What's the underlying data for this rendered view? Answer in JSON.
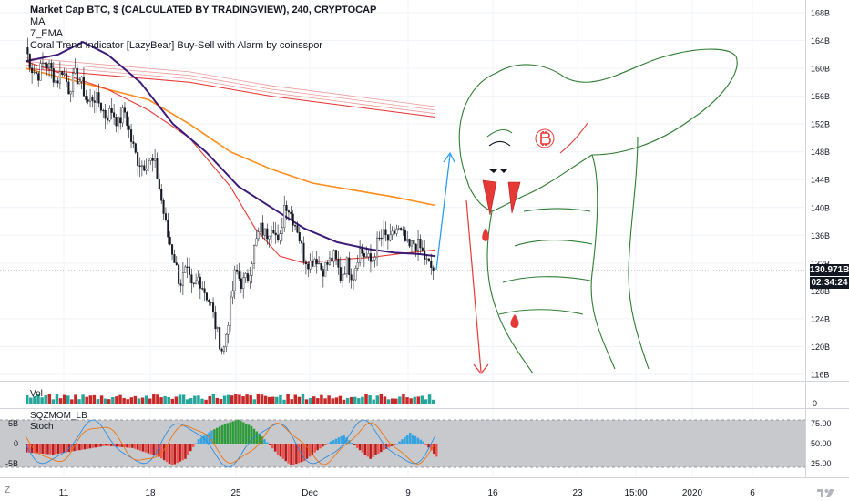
{
  "header": {
    "title": "Market Cap BTC, $ (CALCULATED BY TRADINGVIEW), 240, CRYPTOCAP",
    "indicators": [
      "MA",
      "7_EMA",
      "Coral Trend Indicator [LazyBear] Buy-Sell with Alarm by coinsspor"
    ]
  },
  "price_labels": {
    "last_price": "130.971B",
    "countdown": "02:34:24"
  },
  "panes": {
    "volume_label": "Vol",
    "momentum_label": "SQZMOM_LB",
    "stoch_label": "Stoch"
  },
  "corner_labels": {
    "z": "Z"
  },
  "colors": {
    "up": "#26a69a",
    "down": "#ef5350",
    "ma_purple": "#3c1a78",
    "ma_orange": "#ff8c1a",
    "ma_red": "#e53935",
    "projection_blue": "#2196f3",
    "projection_red": "#e53935",
    "doodle_green": "#2e7d32",
    "stoch_band": "#c8c9cc",
    "mom_green": "#2e9b3a",
    "mom_lime": "#34a3e0"
  },
  "chart_data": {
    "type": "candlestick",
    "title": "Market Cap BTC, $ (CALCULATED BY TRADINGVIEW), 240, CRYPTOCAP",
    "price_axis": {
      "ticks": [
        "168B",
        "164B",
        "160B",
        "156B",
        "152B",
        "148B",
        "144B",
        "140B",
        "136B",
        "132B",
        "128B",
        "124B",
        "120B",
        "116B"
      ],
      "range": [
        114.5,
        169.5
      ]
    },
    "time_axis": {
      "ticks": [
        "11",
        "18",
        "25",
        "Dec",
        "9",
        "16",
        "23",
        "15:00",
        "2020",
        "6"
      ]
    },
    "volume_axis": {
      "ticks": [
        "0"
      ]
    },
    "momentum_axis": {
      "ticks": [
        "5B",
        "0",
        "-5B"
      ]
    },
    "stoch_axis": {
      "ticks": [
        "75.00",
        "50.00",
        "25.00"
      ]
    },
    "price_path": [
      [
        0,
        163
      ],
      [
        1,
        160
      ],
      [
        2,
        159
      ],
      [
        3,
        161
      ],
      [
        4,
        160
      ],
      [
        5,
        158
      ],
      [
        6,
        160
      ],
      [
        7,
        157
      ],
      [
        8,
        159
      ],
      [
        9,
        158
      ],
      [
        10,
        155
      ],
      [
        11,
        156
      ],
      [
        12,
        155
      ],
      [
        13,
        153
      ],
      [
        14,
        154
      ],
      [
        15,
        152
      ],
      [
        16,
        154
      ],
      [
        17,
        150
      ],
      [
        18,
        147
      ],
      [
        19,
        146
      ],
      [
        20,
        147
      ],
      [
        21,
        146
      ],
      [
        22,
        141
      ],
      [
        23,
        136
      ],
      [
        24,
        133
      ],
      [
        25,
        129
      ],
      [
        26,
        131
      ],
      [
        27,
        128
      ],
      [
        28,
        130
      ],
      [
        29,
        128
      ],
      [
        30,
        126
      ],
      [
        31,
        122
      ],
      [
        32,
        119
      ],
      [
        33,
        125
      ],
      [
        34,
        131
      ],
      [
        35,
        129
      ],
      [
        36,
        130
      ],
      [
        37,
        134
      ],
      [
        38,
        137
      ],
      [
        39,
        136
      ],
      [
        40,
        138
      ],
      [
        41,
        134
      ],
      [
        42,
        141
      ],
      [
        43,
        139
      ],
      [
        44,
        137
      ],
      [
        45,
        133
      ],
      [
        46,
        132
      ],
      [
        47,
        133
      ],
      [
        48,
        131
      ],
      [
        49,
        132
      ],
      [
        50,
        133
      ],
      [
        51,
        130
      ],
      [
        52,
        132
      ],
      [
        53,
        130
      ],
      [
        54,
        134
      ],
      [
        55,
        133
      ],
      [
        56,
        132
      ],
      [
        57,
        135
      ],
      [
        58,
        136
      ],
      [
        59,
        135
      ],
      [
        60,
        137
      ],
      [
        61,
        136
      ],
      [
        62,
        134
      ],
      [
        63,
        135
      ],
      [
        64,
        134
      ],
      [
        65,
        132
      ],
      [
        66,
        131
      ]
    ],
    "moving_averages": {
      "purple": [
        [
          0,
          161
        ],
        [
          8,
          162
        ],
        [
          14,
          163.8
        ],
        [
          20,
          162
        ],
        [
          28,
          158
        ],
        [
          36,
          152
        ],
        [
          44,
          148
        ],
        [
          52,
          143
        ],
        [
          60,
          140
        ],
        [
          68,
          137
        ],
        [
          76,
          135
        ],
        [
          84,
          134
        ],
        [
          90,
          133.5
        ],
        [
          96,
          133.3
        ],
        [
          100,
          133
        ]
      ],
      "orange": [
        [
          0,
          160
        ],
        [
          10,
          158.5
        ],
        [
          20,
          157
        ],
        [
          30,
          155.5
        ],
        [
          40,
          152
        ],
        [
          50,
          148
        ],
        [
          60,
          145.5
        ],
        [
          70,
          143.5
        ],
        [
          80,
          142.5
        ],
        [
          90,
          141.5
        ],
        [
          100,
          140.3
        ]
      ],
      "red_fast": [
        [
          0,
          161
        ],
        [
          10,
          159
        ],
        [
          20,
          157
        ],
        [
          30,
          154
        ],
        [
          40,
          150
        ],
        [
          50,
          143
        ],
        [
          56,
          137
        ],
        [
          62,
          133
        ],
        [
          68,
          132
        ],
        [
          76,
          132.5
        ],
        [
          84,
          132.8
        ],
        [
          92,
          133.4
        ],
        [
          100,
          133.9
        ]
      ],
      "red_slow": [
        [
          0,
          160
        ],
        [
          20,
          159
        ],
        [
          40,
          158
        ],
        [
          60,
          156
        ],
        [
          80,
          154.5
        ],
        [
          100,
          153
        ]
      ]
    },
    "projection": {
      "up_to": 148,
      "down_to": 115.5
    }
  }
}
